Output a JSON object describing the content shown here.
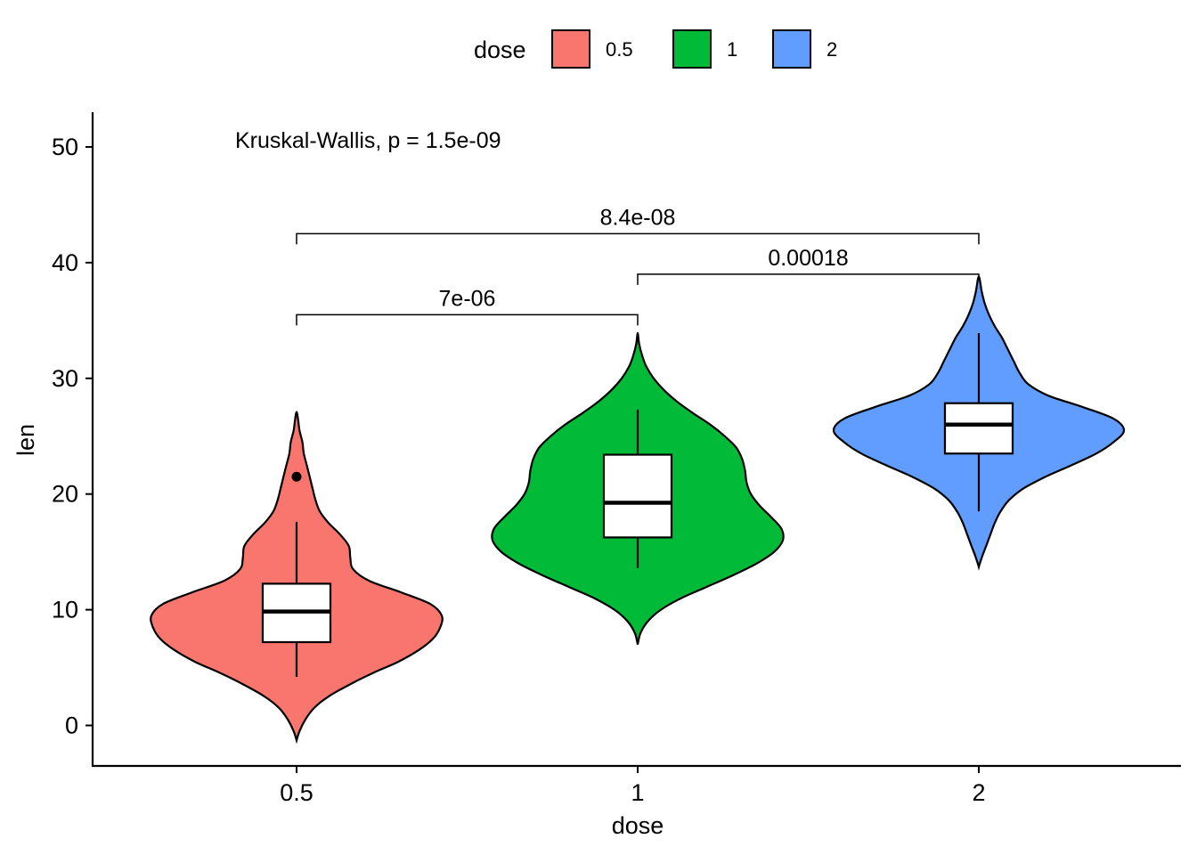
{
  "chart_data": {
    "type": "violin",
    "xlabel": "dose",
    "ylabel": "len",
    "categories": [
      "0.5",
      "1",
      "2"
    ],
    "ylim": [
      -3.5,
      53
    ],
    "yticks": [
      0,
      10,
      20,
      30,
      40,
      50
    ],
    "legend": {
      "title": "dose",
      "placement": "top",
      "entries": [
        {
          "label": "0.5",
          "color": "#F8766D"
        },
        {
          "label": "1",
          "color": "#00BA38"
        },
        {
          "label": "2",
          "color": "#619CFF"
        }
      ]
    },
    "groups": [
      {
        "category": "0.5",
        "color": "#F8766D",
        "violin_range": [
          -1.3,
          27.1
        ],
        "density": [
          [
            -1.3,
            0.0
          ],
          [
            -0.5,
            0.02
          ],
          [
            0.5,
            0.06
          ],
          [
            1.5,
            0.12
          ],
          [
            2.5,
            0.22
          ],
          [
            3.5,
            0.36
          ],
          [
            4.5,
            0.52
          ],
          [
            5.5,
            0.7
          ],
          [
            6.5,
            0.84
          ],
          [
            7.5,
            0.94
          ],
          [
            8.5,
            0.99
          ],
          [
            9.5,
            1.0
          ],
          [
            10.5,
            0.92
          ],
          [
            11.5,
            0.72
          ],
          [
            12.5,
            0.5
          ],
          [
            13.5,
            0.39
          ],
          [
            14.5,
            0.37
          ],
          [
            15.5,
            0.36
          ],
          [
            16.5,
            0.3
          ],
          [
            17.5,
            0.22
          ],
          [
            18.5,
            0.16
          ],
          [
            19.5,
            0.13
          ],
          [
            20.5,
            0.11
          ],
          [
            21.5,
            0.09
          ],
          [
            22.5,
            0.07
          ],
          [
            23.5,
            0.05
          ],
          [
            24.5,
            0.04
          ],
          [
            25.5,
            0.02
          ],
          [
            26.5,
            0.01
          ],
          [
            27.1,
            0.0
          ]
        ],
        "box": {
          "whisker_low": 4.2,
          "q1": 7.2,
          "median": 9.85,
          "q3": 12.25,
          "whisker_high": 17.6
        },
        "outliers": [
          21.5
        ]
      },
      {
        "category": "1",
        "color": "#00BA38",
        "violin_range": [
          7.0,
          33.9
        ],
        "density": [
          [
            7.0,
            0.0
          ],
          [
            8.0,
            0.02
          ],
          [
            9.0,
            0.07
          ],
          [
            10.0,
            0.16
          ],
          [
            11.0,
            0.3
          ],
          [
            12.0,
            0.48
          ],
          [
            13.0,
            0.66
          ],
          [
            14.0,
            0.82
          ],
          [
            15.0,
            0.94
          ],
          [
            16.0,
            1.0
          ],
          [
            17.0,
            0.99
          ],
          [
            18.0,
            0.92
          ],
          [
            19.0,
            0.84
          ],
          [
            20.0,
            0.78
          ],
          [
            21.0,
            0.75
          ],
          [
            22.0,
            0.74
          ],
          [
            23.0,
            0.72
          ],
          [
            24.0,
            0.68
          ],
          [
            25.0,
            0.6
          ],
          [
            26.0,
            0.5
          ],
          [
            27.0,
            0.38
          ],
          [
            28.0,
            0.27
          ],
          [
            29.0,
            0.18
          ],
          [
            30.0,
            0.11
          ],
          [
            31.0,
            0.06
          ],
          [
            32.0,
            0.03
          ],
          [
            33.0,
            0.01
          ],
          [
            33.9,
            0.0
          ]
        ],
        "box": {
          "whisker_low": 13.6,
          "q1": 16.25,
          "median": 19.25,
          "q3": 23.4,
          "whisker_high": 27.3
        },
        "outliers": []
      },
      {
        "category": "2",
        "color": "#619CFF",
        "violin_range": [
          13.7,
          38.8
        ],
        "density": [
          [
            13.7,
            0.0
          ],
          [
            14.5,
            0.02
          ],
          [
            15.5,
            0.05
          ],
          [
            16.5,
            0.08
          ],
          [
            17.5,
            0.11
          ],
          [
            18.5,
            0.15
          ],
          [
            19.5,
            0.21
          ],
          [
            20.5,
            0.31
          ],
          [
            21.5,
            0.46
          ],
          [
            22.5,
            0.64
          ],
          [
            23.5,
            0.81
          ],
          [
            24.5,
            0.93
          ],
          [
            25.5,
            1.0
          ],
          [
            26.5,
            0.93
          ],
          [
            27.5,
            0.72
          ],
          [
            28.5,
            0.48
          ],
          [
            29.5,
            0.34
          ],
          [
            30.5,
            0.28
          ],
          [
            31.5,
            0.24
          ],
          [
            32.5,
            0.2
          ],
          [
            33.5,
            0.16
          ],
          [
            34.5,
            0.11
          ],
          [
            35.5,
            0.07
          ],
          [
            36.5,
            0.04
          ],
          [
            37.5,
            0.02
          ],
          [
            38.8,
            0.0
          ]
        ],
        "box": {
          "whisker_low": 18.5,
          "q1": 23.5,
          "median": 26.0,
          "q3": 27.85,
          "whisker_high": 33.9
        },
        "outliers": []
      }
    ],
    "comparisons": [
      {
        "from": "0.5",
        "to": "1",
        "label": "7e-06",
        "y": 35.5
      },
      {
        "from": "1",
        "to": "2",
        "label": "0.00018",
        "y": 39.0
      },
      {
        "from": "0.5",
        "to": "2",
        "label": "8.4e-08",
        "y": 42.5
      }
    ],
    "annotation": {
      "text": "Kruskal-Wallis, p = 1.5e-09",
      "x": "0.5",
      "y": 50
    }
  }
}
